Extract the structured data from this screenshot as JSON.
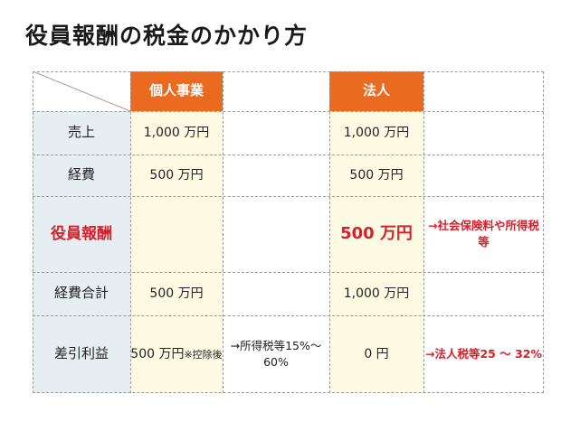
{
  "title": "役員報酬の税金のかかり方",
  "columns": {
    "kojin": "個人事業",
    "hojin": "法人"
  },
  "rows": [
    {
      "label": "売上",
      "kojin": [
        "1,000 万",
        "円"
      ],
      "kojin_note": [],
      "hojin": [
        "1,000 万",
        "円"
      ],
      "hojin_note": []
    },
    {
      "label": "経費",
      "kojin": [
        "500 万円"
      ],
      "kojin_note": [],
      "hojin": [
        "500 万円"
      ],
      "hojin_note": []
    },
    {
      "label": "役員報酬",
      "kojin": [],
      "kojin_note": [],
      "hojin": [
        "500 万",
        "円"
      ],
      "hojin_note": [
        "→社会保険料",
        "や所得税等"
      ]
    },
    {
      "label": "経費合計",
      "kojin": [
        "500 万円"
      ],
      "kojin_note": [],
      "hojin": [
        "1,000 万",
        "円"
      ],
      "hojin_note": []
    },
    {
      "label": "差引利益",
      "kojin": [
        "500 万円",
        "※控除後"
      ],
      "kojin_note": [
        "→所得税等",
        "15%〜 60%"
      ],
      "hojin": [
        "0 円"
      ],
      "hojin_note": [
        "→法人税等",
        "25 〜 32%"
      ]
    }
  ],
  "colors": {
    "header_orange": "#ea6a20",
    "row_header_bg": "#e6eef1",
    "value_bg": "#fdfbe3",
    "highlight_red": "#d6202b"
  }
}
